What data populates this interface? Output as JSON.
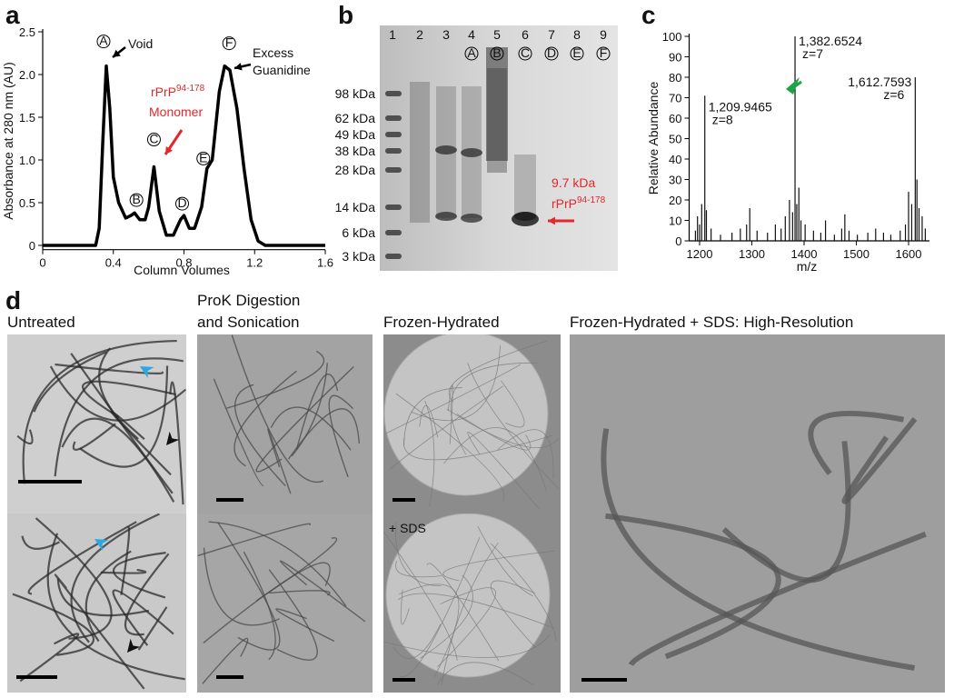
{
  "panel_labels": [
    "a",
    "b",
    "c",
    "d"
  ],
  "chart_data": [
    {
      "type": "line",
      "ylabel": "Absorbance at 280 nm (AU)",
      "xlabel": "Column Volumes",
      "x": [
        0,
        0.3,
        0.32,
        0.34,
        0.36,
        0.38,
        0.4,
        0.43,
        0.47,
        0.5,
        0.52,
        0.55,
        0.58,
        0.6,
        0.63,
        0.66,
        0.7,
        0.74,
        0.78,
        0.8,
        0.83,
        0.86,
        0.9,
        0.93,
        0.96,
        1.0,
        1.03,
        1.06,
        1.1,
        1.14,
        1.18,
        1.22,
        1.26,
        1.6
      ],
      "series": [
        {
          "color": "#000000",
          "values": [
            0,
            0,
            0.2,
            1.2,
            2.1,
            1.6,
            0.8,
            0.5,
            0.32,
            0.35,
            0.38,
            0.3,
            0.3,
            0.45,
            0.92,
            0.4,
            0.12,
            0.12,
            0.3,
            0.35,
            0.2,
            0.2,
            0.45,
            0.9,
            1.0,
            1.8,
            2.1,
            2.05,
            1.6,
            0.9,
            0.3,
            0.05,
            0,
            0
          ]
        }
      ],
      "xlim": [
        0,
        1.6
      ],
      "ylim": [
        -0.05,
        2.5
      ],
      "xticks": [
        0,
        0.4,
        0.8,
        1.2,
        1.6
      ],
      "yticks": [
        0,
        0.5,
        {
          "value": 1,
          "label": "1.0"
        },
        1.5,
        {
          "value": 2,
          "label": "2.0"
        },
        2.5
      ],
      "peaks": [
        {
          "label": "A",
          "x": 0.36,
          "y": 2.1
        },
        {
          "label": "B",
          "x": 0.5,
          "y": 0.35
        },
        {
          "label": "C",
          "x": 0.63,
          "y": 0.92
        },
        {
          "label": "D",
          "x": 0.8,
          "y": 0.35
        },
        {
          "label": "E",
          "x": 0.93,
          "y": 0.9
        },
        {
          "label": "F",
          "x": 1.03,
          "y": 2.1
        }
      ],
      "annotations": {
        "void": "Void",
        "monomer": {
          "text": "rPrP",
          "sup": "94-178"
        },
        "monomer_line2": "Monomer",
        "excess": [
          "Excess",
          "Guanidine"
        ]
      }
    },
    {
      "type": "stem",
      "ylabel": "Relative Abundance",
      "xlabel": "m/z",
      "x": [
        1192,
        1196,
        1200,
        1204,
        1209.9465,
        1213,
        1222,
        1240,
        1262,
        1278,
        1290,
        1296,
        1310,
        1330,
        1345,
        1356,
        1364,
        1372,
        1378,
        1382.6524,
        1386,
        1390,
        1394,
        1402,
        1418,
        1432,
        1441,
        1458,
        1472,
        1478,
        1486,
        1502,
        1522,
        1537,
        1552,
        1566,
        1584,
        1594,
        1600,
        1606,
        1612.7593,
        1616,
        1620,
        1626,
        1632
      ],
      "series": [
        {
          "color": "#111111",
          "values": [
            5,
            12,
            8,
            18,
            71,
            15,
            6,
            3,
            4,
            6,
            8,
            16,
            5,
            4,
            8,
            6,
            12,
            20,
            14,
            100,
            18,
            26,
            10,
            8,
            5,
            4,
            10,
            3,
            6,
            13,
            5,
            3,
            4,
            6,
            4,
            3,
            5,
            8,
            24,
            18,
            80,
            30,
            16,
            12,
            6
          ]
        }
      ],
      "xlim": [
        1180,
        1640
      ],
      "ylim": [
        0,
        100
      ],
      "xticks": [
        1200,
        1300,
        1400,
        1500,
        1600
      ],
      "yticks": [
        0,
        10,
        20,
        30,
        40,
        50,
        60,
        70,
        80,
        90,
        100
      ],
      "peak_labels": [
        {
          "x": 1209.9465,
          "y": 71,
          "label": "1,209.9465",
          "charge": "z=8"
        },
        {
          "x": 1382.6524,
          "y": 100,
          "label": "1,382.6524",
          "charge": "z=7"
        },
        {
          "x": 1612.7593,
          "y": 80,
          "label": "1,612.7593",
          "charge": "z=6"
        }
      ]
    }
  ],
  "gel": {
    "lanes": [
      "1",
      "2",
      "3",
      "4",
      "5",
      "6",
      "7",
      "8",
      "9"
    ],
    "fractions": [
      "A",
      "B",
      "C",
      "D",
      "E",
      "F"
    ],
    "markers": [
      "98 kDa",
      "62 kDa",
      "49 kDa",
      "38 kDa",
      "28 kDa",
      "14 kDa",
      "6 kDa",
      "3 kDa"
    ],
    "band_label": "9.7 kDa",
    "protein": {
      "text": "rPrP",
      "sup": "94-178"
    }
  },
  "micrographs": {
    "untreated": "Untreated",
    "prok": [
      "ProK Digestion",
      "and Sonication"
    ],
    "frozen": "Frozen-Hydrated",
    "highres": "Frozen-Hydrated + SDS: High-Resolution",
    "inset": "+ SDS"
  }
}
